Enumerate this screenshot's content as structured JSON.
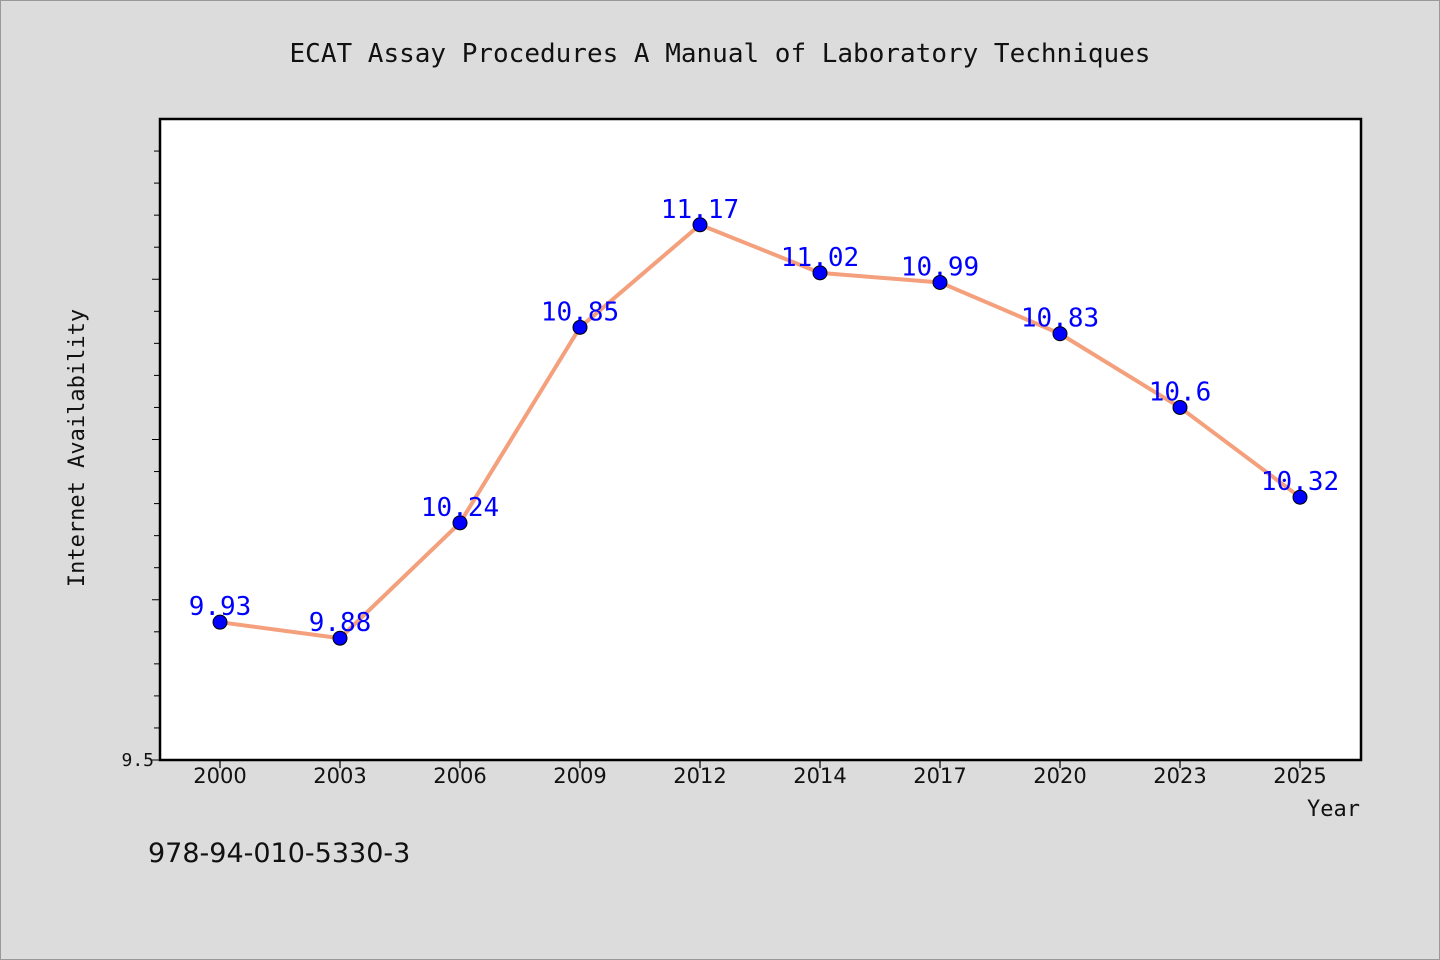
{
  "chart_data": {
    "type": "line",
    "title": "ECAT Assay Procedures A Manual of Laboratory Techniques",
    "xlabel": "Year",
    "ylabel": "Internet Availability",
    "categories": [
      "2000",
      "2003",
      "2006",
      "2009",
      "2012",
      "2014",
      "2017",
      "2020",
      "2023",
      "2025"
    ],
    "series": [
      {
        "values": [
          9.93,
          9.88,
          10.24,
          10.85,
          11.17,
          11.02,
          10.99,
          10.83,
          10.6,
          10.32
        ],
        "data_labels": [
          "9.93",
          "9.88",
          "10.24",
          "10.85",
          "11.17",
          "11.02",
          "10.99",
          "10.83",
          "10.6",
          "10.32"
        ]
      }
    ],
    "ylim": [
      9.5,
      11.5
    ],
    "y_tick_labels": [
      {
        "value": 9.5,
        "label": "9.5"
      }
    ],
    "grid": false,
    "line_color": "#f4a07c",
    "marker_color": "#0000ff",
    "label_color": "#0000ff"
  },
  "footer": {
    "isbn": "978-94-010-5330-3"
  }
}
